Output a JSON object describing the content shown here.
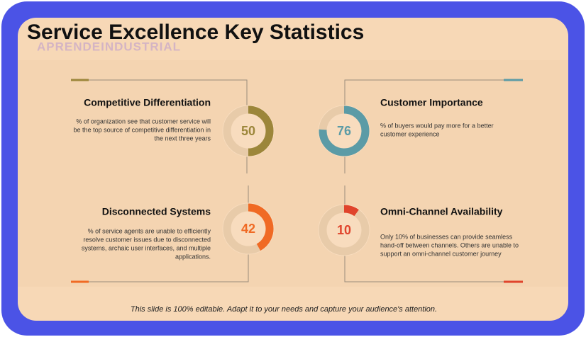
{
  "title": "Service Excellence Key Statistics",
  "watermark": "APRENDEINDUSTRIAL",
  "stats": [
    {
      "heading": "Competitive Differentiation",
      "value": 50,
      "color": "#9c863a",
      "body": [
        "% of organization see that customer service will",
        "be the top source of competitive differentiation in",
        "the next three years"
      ]
    },
    {
      "heading": "Customer Importance",
      "value": 76,
      "color": "#5b9ba6",
      "body": [
        "% of buyers would pay more for a better",
        "customer experience"
      ]
    },
    {
      "heading": "Disconnected Systems",
      "value": 42,
      "color": "#f06a24",
      "body": [
        "% of service agents are unable to efficiently",
        "resolve customer issues due to disconnected",
        "systems, archaic user interfaces, and multiple",
        "applications."
      ]
    },
    {
      "heading": "Omni-Channel Availability",
      "value": 10,
      "color": "#e0442c",
      "body": [
        "Only 10% of businesses can provide seamless",
        "hand-off between channels. Others are unable to",
        "support an omni-channel customer journey"
      ]
    }
  ],
  "footer": "This slide is 100% editable. Adapt it to your needs and capture your audience's attention."
}
